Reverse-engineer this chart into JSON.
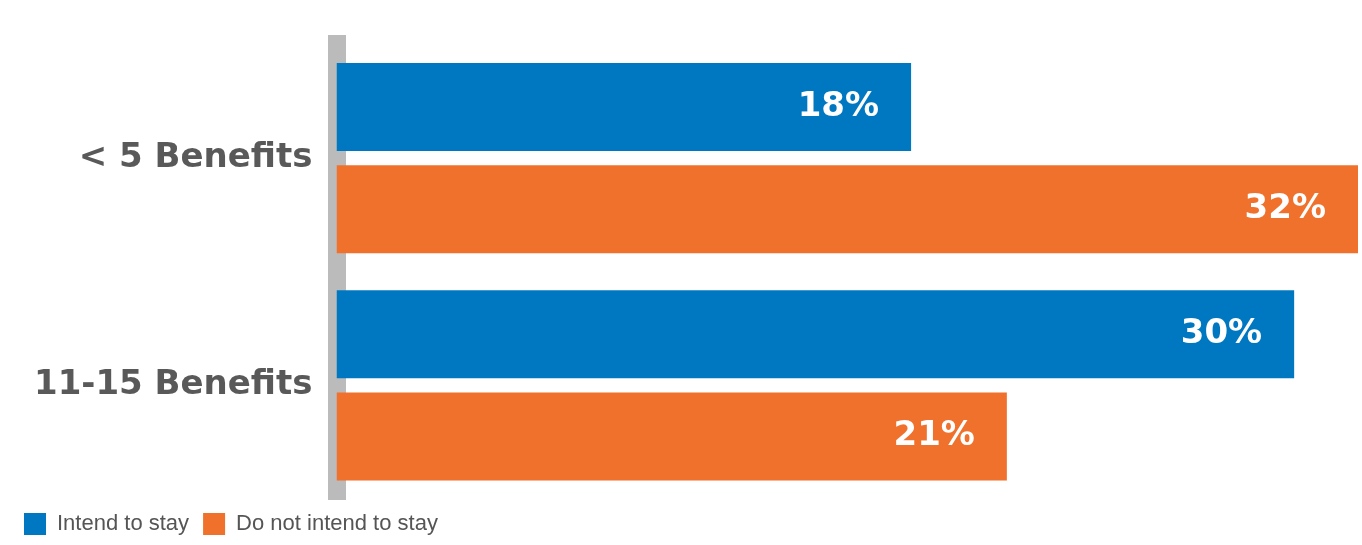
{
  "chart_data": {
    "type": "bar",
    "orientation": "horizontal",
    "categories": [
      "< 5 Benefits",
      "11-15 Benefits"
    ],
    "series": [
      {
        "name": "Intend to stay",
        "color": "#0078c1",
        "values": [
          18,
          30
        ],
        "value_labels": [
          "18%",
          "30%"
        ]
      },
      {
        "name": "Do not intend to stay",
        "color": "#f0712b",
        "values": [
          32,
          21
        ],
        "value_labels": [
          "32%",
          "21%"
        ]
      }
    ],
    "legend": "bottom left",
    "grid": false
  }
}
